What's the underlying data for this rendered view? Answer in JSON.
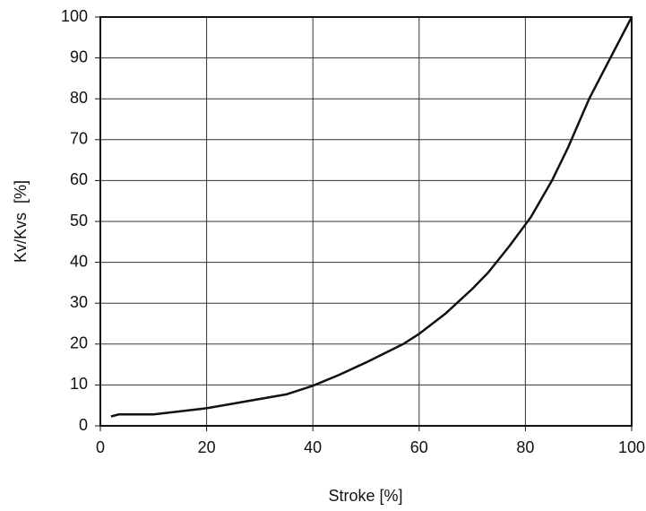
{
  "chart_data": {
    "type": "line",
    "x_label": "Stroke [%]",
    "y_label": "Kv/Kvs  [%]",
    "x": [
      2,
      3.5,
      10,
      20,
      35,
      40,
      45,
      50,
      57,
      60,
      65,
      70,
      73,
      77,
      81,
      85,
      88,
      92,
      96,
      100
    ],
    "series": [
      {
        "color": "#111111",
        "values": [
          2.3,
          2.8,
          2.8,
          4.3,
          7.7,
          9.8,
          12.5,
          15.5,
          20,
          22.5,
          27.5,
          33.5,
          37.5,
          44,
          51,
          60,
          68,
          80,
          90,
          100
        ]
      }
    ],
    "xlim": [
      0,
      100
    ],
    "xticks": [
      0,
      20,
      40,
      60,
      80,
      100
    ],
    "ylim": [
      0,
      100
    ],
    "yticks": [
      0,
      10,
      20,
      30,
      40,
      50,
      60,
      70,
      80,
      90,
      100
    ],
    "grid": true
  }
}
